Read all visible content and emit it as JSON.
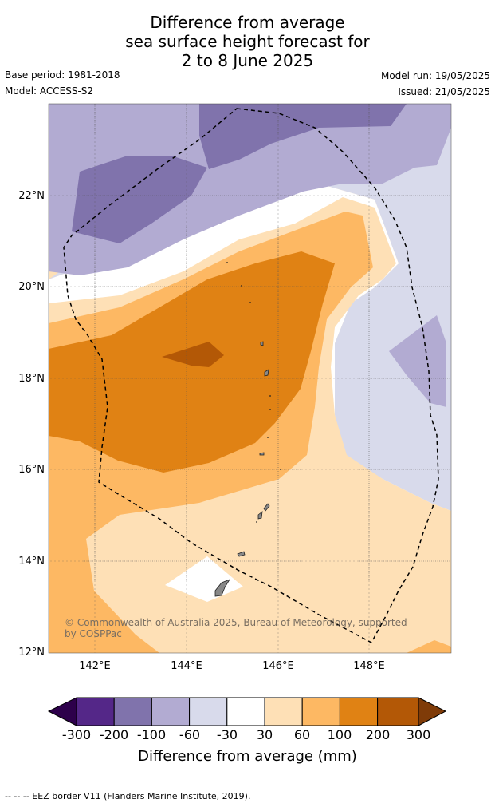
{
  "header": {
    "title_line1": "Difference from average",
    "title_line2": "sea surface height forecast for",
    "title_line3": "2 to 8 June 2025",
    "base_period": "Base period: 1981-2018",
    "model": "Model: ACCESS-S2",
    "model_run": "Model run: 19/05/2025",
    "issued": "Issued: 21/05/2025"
  },
  "map": {
    "lat_labels": [
      "22°N",
      "20°N",
      "18°N",
      "16°N",
      "14°N",
      "12°N"
    ],
    "lon_labels": [
      "142°E",
      "144°E",
      "146°E",
      "148°E"
    ],
    "copyright": "© Commonwealth of Australia 2025, Bureau of Meteorology, supported by COSPPac",
    "eez_border": "dashed"
  },
  "colorbar": {
    "ticks": [
      "-300",
      "-200",
      "-100",
      "-60",
      "-30",
      "30",
      "60",
      "100",
      "200",
      "300"
    ],
    "colors": [
      "#2d004b",
      "#542788",
      "#8073ac",
      "#b2abd2",
      "#d8daeb",
      "#ffffff",
      "#fee0b6",
      "#fdb863",
      "#e08214",
      "#b35806",
      "#7f3b08"
    ],
    "title": "Difference from average (mm)"
  },
  "footnote": "--  --  -- EEZ border V11 (Flanders Marine Institute, 2019)."
}
